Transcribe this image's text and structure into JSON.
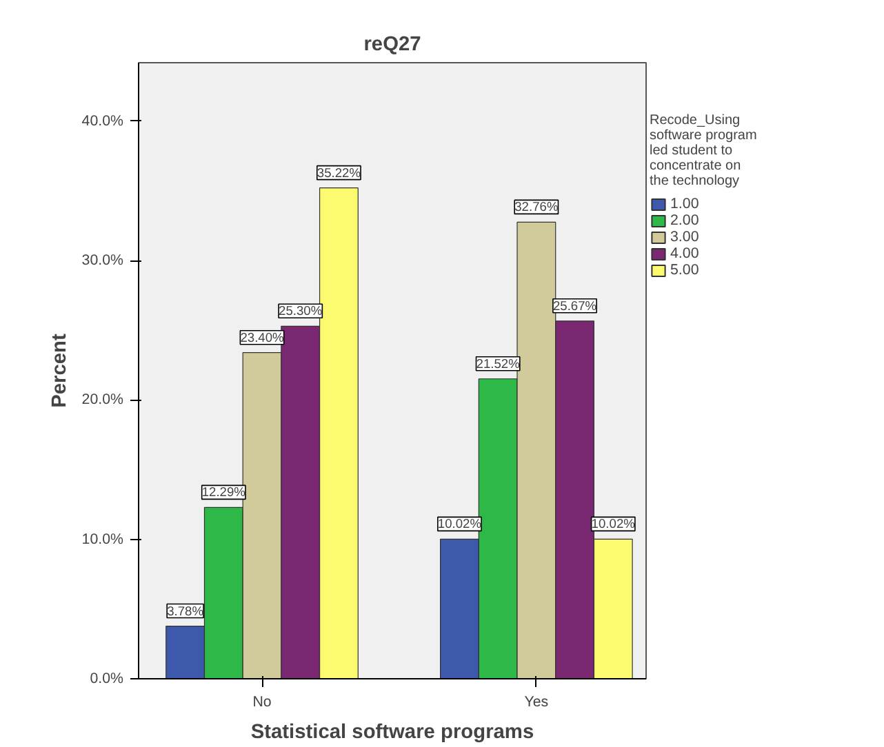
{
  "chart_data": {
    "type": "bar",
    "title": "reQ27",
    "xlabel": "Statistical software programs",
    "ylabel": "Percent",
    "legend_title": "Recode_Using software program led student to concentrate on the technology",
    "categories": [
      "No",
      "Yes"
    ],
    "series": [
      {
        "name": "1.00",
        "color": "#3e58ac",
        "values": [
          3.78,
          10.02
        ],
        "value_labels": [
          "3.78%",
          "10.02%"
        ]
      },
      {
        "name": "2.00",
        "color": "#2eb848",
        "values": [
          12.29,
          21.52
        ],
        "value_labels": [
          "12.29%",
          "21.52%"
        ]
      },
      {
        "name": "3.00",
        "color": "#d1cb9b",
        "values": [
          23.4,
          32.76
        ],
        "value_labels": [
          "23.40%",
          "32.76%"
        ]
      },
      {
        "name": "4.00",
        "color": "#7a2871",
        "values": [
          25.3,
          25.67
        ],
        "value_labels": [
          "25.30%",
          "25.67%"
        ]
      },
      {
        "name": "5.00",
        "color": "#fcfa6e",
        "values": [
          35.22,
          10.02
        ],
        "value_labels": [
          "35.22%",
          "10.02%"
        ]
      }
    ],
    "ylim": [
      0,
      44.2
    ],
    "yticks": [
      {
        "value": 0,
        "label": "0.0%"
      },
      {
        "value": 10,
        "label": "10.0%"
      },
      {
        "value": 20,
        "label": "20.0%"
      },
      {
        "value": 30,
        "label": "30.0%"
      },
      {
        "value": 40,
        "label": "40.0%"
      }
    ],
    "grid": false,
    "legend": "right"
  }
}
